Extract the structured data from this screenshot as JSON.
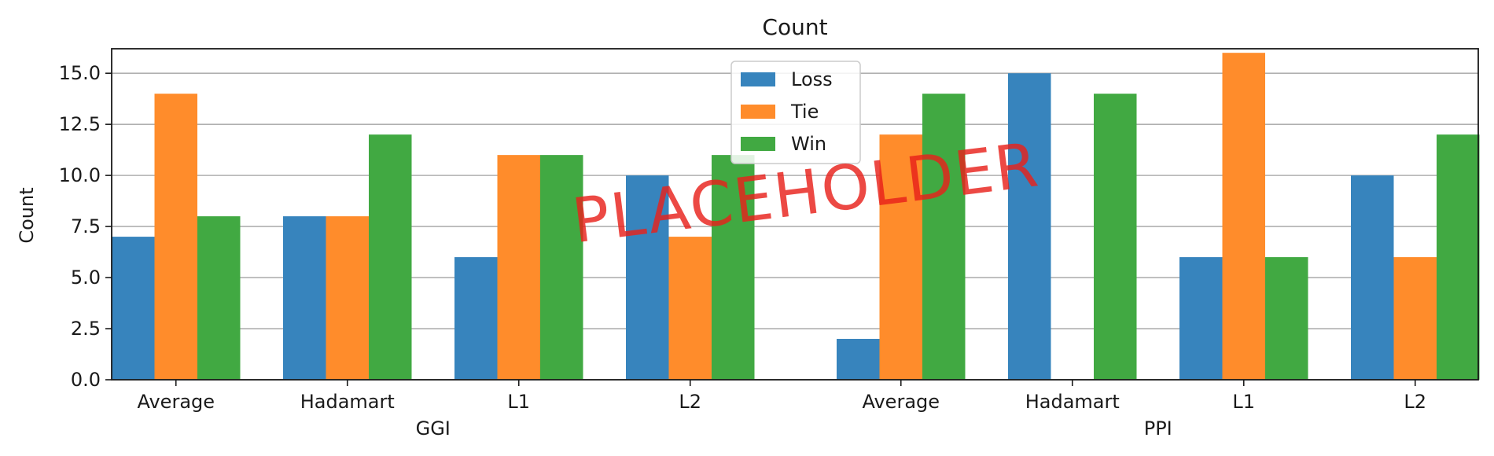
{
  "chart_data": {
    "type": "bar",
    "title": "Count",
    "ylabel": "Count",
    "xlabel": "",
    "ylim": [
      0,
      16.2
    ],
    "yticks": [
      0.0,
      2.5,
      5.0,
      7.5,
      10.0,
      12.5,
      15.0
    ],
    "ytick_labels": [
      "0.0",
      "2.5",
      "5.0",
      "7.5",
      "10.0",
      "12.5",
      "15.0"
    ],
    "grid": "horizontal",
    "legend_position": "top-center",
    "groups": [
      {
        "label": "GGI",
        "categories": [
          "Average",
          "Hadamart",
          "L1",
          "L2"
        ]
      },
      {
        "label": "PPI",
        "categories": [
          "Average",
          "Hadamart",
          "L1",
          "L2"
        ]
      }
    ],
    "series": [
      {
        "name": "Loss",
        "color": "#3784bd",
        "values": [
          7,
          8,
          6,
          10,
          2,
          15,
          6,
          10
        ]
      },
      {
        "name": "Tie",
        "color": "#ff8c2b",
        "values": [
          14,
          8,
          11,
          7,
          12,
          0,
          16,
          6
        ]
      },
      {
        "name": "Win",
        "color": "#41a942",
        "values": [
          8,
          12,
          11,
          11,
          14,
          14,
          6,
          12
        ]
      }
    ],
    "watermark": "PLACEHOLDER"
  }
}
